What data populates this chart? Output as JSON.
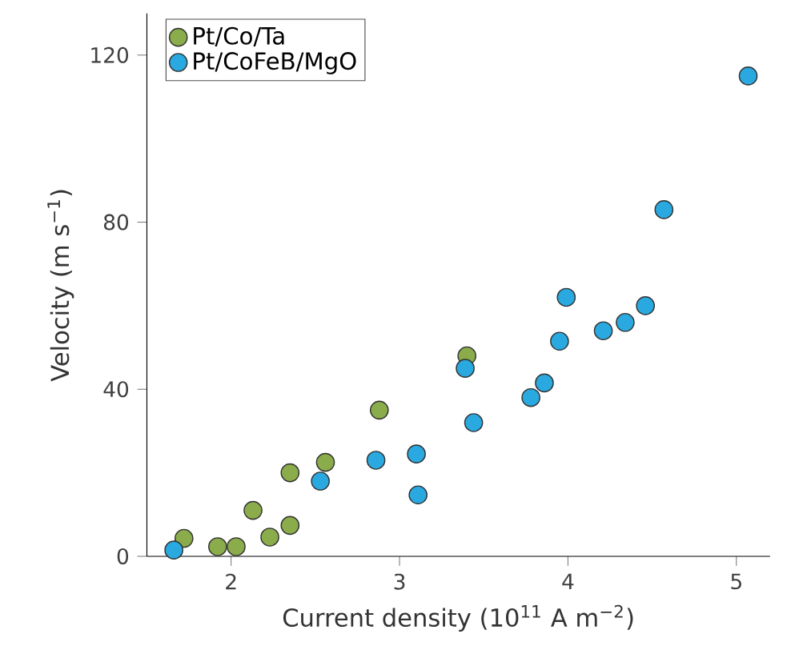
{
  "chart_data": {
    "type": "scatter",
    "xlabel": "Current density (10$^{11}$ A m$^{−2}$)",
    "ylabel": "Velocity (m s$^{−1}$)",
    "xlim": [
      1.5,
      5.2
    ],
    "ylim": [
      0,
      130
    ],
    "xticks": [
      2,
      3,
      4,
      5
    ],
    "yticks": [
      0,
      40,
      80,
      120
    ],
    "legend": "top left",
    "marker": "circle",
    "grid": false,
    "series": [
      {
        "name": "Pt/Co/Ta",
        "color": "#8aac4a",
        "x": [
          1.72,
          1.92,
          2.03,
          2.13,
          2.23,
          2.35,
          2.35,
          2.56,
          2.88,
          3.4
        ],
        "values": [
          4.3,
          2.3,
          2.3,
          11,
          4.6,
          7.4,
          20,
          22.5,
          35,
          48
        ]
      },
      {
        "name": "Pt/CoFeB/MgO",
        "color": "#29a9e0",
        "x": [
          1.66,
          2.53,
          2.86,
          3.1,
          3.11,
          3.39,
          3.44,
          3.78,
          3.86,
          3.95,
          3.99,
          4.21,
          4.34,
          4.46,
          4.57,
          5.07
        ],
        "values": [
          1.5,
          18,
          23,
          24.5,
          14.7,
          45,
          32,
          38,
          41.5,
          51.5,
          62,
          54,
          56,
          60,
          83,
          115
        ]
      }
    ]
  }
}
